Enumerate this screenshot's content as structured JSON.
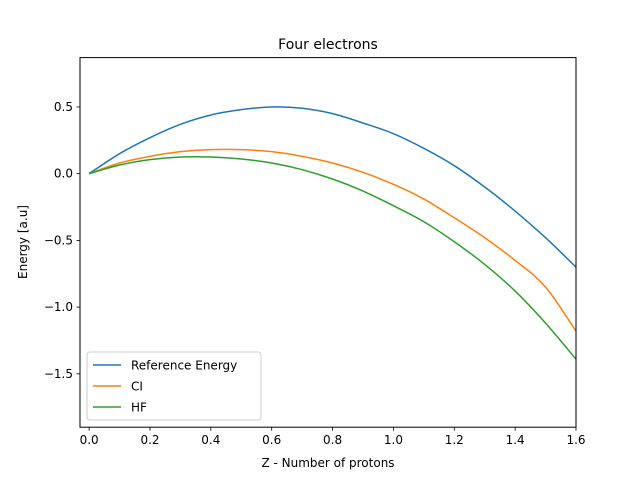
{
  "chart_data": {
    "type": "line",
    "title": "Four electrons",
    "xlabel": "Z - Number of protons",
    "ylabel": "Energy [a.u]",
    "xlim": [
      -0.03,
      1.6
    ],
    "ylim": [
      -1.9,
      0.87
    ],
    "xticks": [
      {
        "value": 0.0,
        "label": "0.0"
      },
      {
        "value": 0.2,
        "label": "0.2"
      },
      {
        "value": 0.4,
        "label": "0.4"
      },
      {
        "value": 0.6,
        "label": "0.6"
      },
      {
        "value": 0.8,
        "label": "0.8"
      },
      {
        "value": 1.0,
        "label": "1.0"
      },
      {
        "value": 1.2,
        "label": "1.2"
      },
      {
        "value": 1.4,
        "label": "1.4"
      },
      {
        "value": 1.6,
        "label": "1.6"
      }
    ],
    "yticks": [
      {
        "value": 0.5,
        "label": "0.5"
      },
      {
        "value": 0.0,
        "label": "0.0"
      },
      {
        "value": -0.5,
        "label": "−0.5"
      },
      {
        "value": -1.0,
        "label": "−1.0"
      },
      {
        "value": -1.5,
        "label": "−1.5"
      }
    ],
    "grid": false,
    "legend_position": "lower-left",
    "x": [
      0.0,
      0.1,
      0.2,
      0.3,
      0.4,
      0.5,
      0.6,
      0.7,
      0.8,
      0.9,
      1.0,
      1.1,
      1.2,
      1.3,
      1.4,
      1.5,
      1.6
    ],
    "series": [
      {
        "name": "Reference Energy",
        "color": "#1f77b4",
        "values": [
          0.0,
          0.15,
          0.27,
          0.37,
          0.44,
          0.48,
          0.5,
          0.49,
          0.45,
          0.38,
          0.3,
          0.19,
          0.06,
          -0.1,
          -0.28,
          -0.48,
          -0.7
        ]
      },
      {
        "name": "CI",
        "color": "#ff7f0e",
        "values": [
          0.0,
          0.08,
          0.13,
          0.165,
          0.18,
          0.18,
          0.165,
          0.13,
          0.08,
          0.01,
          -0.08,
          -0.19,
          -0.33,
          -0.48,
          -0.65,
          -0.85,
          -1.18
        ]
      },
      {
        "name": "HF",
        "color": "#2ca02c",
        "values": [
          0.0,
          0.065,
          0.105,
          0.125,
          0.125,
          0.11,
          0.08,
          0.03,
          -0.04,
          -0.13,
          -0.24,
          -0.36,
          -0.51,
          -0.68,
          -0.88,
          -1.12,
          -1.39
        ]
      }
    ]
  }
}
